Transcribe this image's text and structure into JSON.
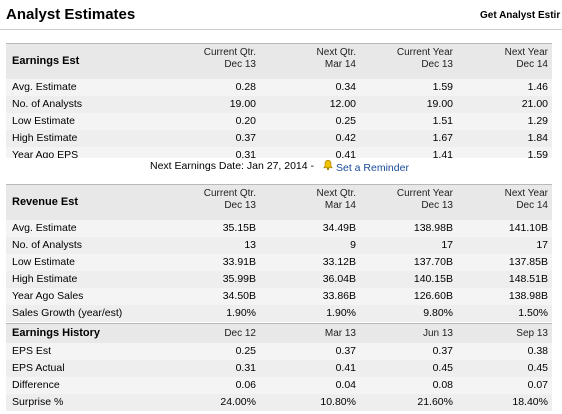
{
  "header": {
    "title": "Analyst Estimates",
    "link": "Get Analyst Estir"
  },
  "earnings_est": {
    "title": "Earnings Est",
    "columns": [
      {
        "l1": "Current Qtr.",
        "l2": "Dec 13"
      },
      {
        "l1": "Next Qtr.",
        "l2": "Mar 14"
      },
      {
        "l1": "Current Year",
        "l2": "Dec 13"
      },
      {
        "l1": "Next Year",
        "l2": "Dec 14"
      }
    ],
    "rows": [
      {
        "label": "Avg. Estimate",
        "v": [
          "0.28",
          "0.34",
          "1.59",
          "1.46"
        ]
      },
      {
        "label": "No. of Analysts",
        "v": [
          "19.00",
          "12.00",
          "19.00",
          "21.00"
        ]
      },
      {
        "label": "Low Estimate",
        "v": [
          "0.20",
          "0.25",
          "1.51",
          "1.29"
        ]
      },
      {
        "label": "High Estimate",
        "v": [
          "0.37",
          "0.42",
          "1.67",
          "1.84"
        ]
      },
      {
        "label": "Year Ago EPS",
        "v": [
          "0.31",
          "0.41",
          "1.41",
          "1.59"
        ]
      }
    ]
  },
  "next_earnings": {
    "text": "Next Earnings Date: Jan 27, 2014 -",
    "reminder": "Set a Reminder",
    "icon": "bell-icon"
  },
  "revenue_est": {
    "title": "Revenue Est",
    "columns": [
      {
        "l1": "Current Qtr.",
        "l2": "Dec 13"
      },
      {
        "l1": "Next Qtr.",
        "l2": "Mar 14"
      },
      {
        "l1": "Current Year",
        "l2": "Dec 13"
      },
      {
        "l1": "Next Year",
        "l2": "Dec 14"
      }
    ],
    "rows": [
      {
        "label": "Avg. Estimate",
        "v": [
          "35.15B",
          "34.49B",
          "138.98B",
          "141.10B"
        ]
      },
      {
        "label": "No. of Analysts",
        "v": [
          "13",
          "9",
          "17",
          "17"
        ]
      },
      {
        "label": "Low Estimate",
        "v": [
          "33.91B",
          "33.12B",
          "137.70B",
          "137.85B"
        ]
      },
      {
        "label": "High Estimate",
        "v": [
          "35.99B",
          "36.04B",
          "140.15B",
          "148.51B"
        ]
      },
      {
        "label": "Year Ago Sales",
        "v": [
          "34.50B",
          "33.86B",
          "126.60B",
          "138.98B"
        ]
      },
      {
        "label": "Sales Growth (year/est)",
        "v": [
          "1.90%",
          "1.90%",
          "9.80%",
          "1.50%"
        ]
      }
    ]
  },
  "earnings_history": {
    "title": "Earnings History",
    "columns": [
      "Dec 12",
      "Mar 13",
      "Jun 13",
      "Sep 13"
    ],
    "rows": [
      {
        "label": "EPS Est",
        "v": [
          "0.25",
          "0.37",
          "0.37",
          "0.38"
        ]
      },
      {
        "label": "EPS Actual",
        "v": [
          "0.31",
          "0.41",
          "0.45",
          "0.45"
        ]
      },
      {
        "label": "Difference",
        "v": [
          "0.06",
          "0.04",
          "0.08",
          "0.07"
        ]
      },
      {
        "label": "Surprise %",
        "v": [
          "24.00%",
          "10.80%",
          "21.60%",
          "18.40%"
        ]
      }
    ]
  }
}
